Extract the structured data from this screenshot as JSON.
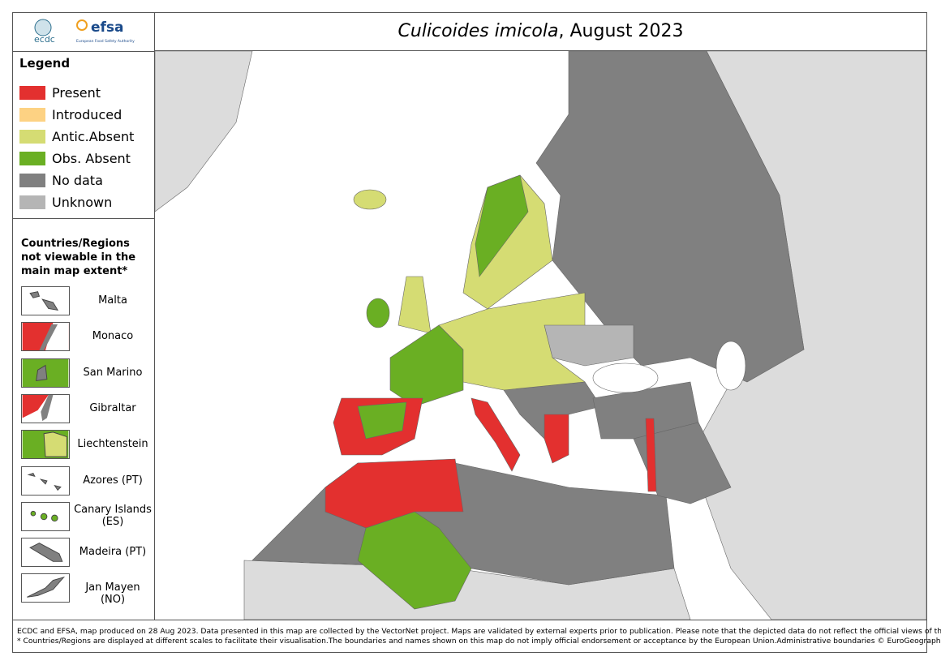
{
  "logos": {
    "ecdc": "ecdc",
    "efsa": "efsa",
    "efsa_sub": "European Food Safety Authority"
  },
  "title": {
    "species": "Culicoides imicola",
    "rest": ", August 2023"
  },
  "legend": {
    "title": "Legend",
    "items": [
      {
        "label": "Present",
        "color": "#e3302f"
      },
      {
        "label": "Introduced",
        "color": "#fdd283"
      },
      {
        "label": "Antic.Absent",
        "color": "#d5dc73"
      },
      {
        "label": "Obs. Absent",
        "color": "#6aaf23"
      },
      {
        "label": "No data",
        "color": "#808080"
      },
      {
        "label": "Unknown",
        "color": "#b5b5b5"
      }
    ]
  },
  "insets": {
    "title": "Countries/Regions not viewable in the main map extent*",
    "items": [
      {
        "label": "Malta"
      },
      {
        "label": "Monaco"
      },
      {
        "label": "San Marino"
      },
      {
        "label": "Gibraltar"
      },
      {
        "label": "Liechtenstein"
      },
      {
        "label": "Azores (PT)"
      },
      {
        "label": "Canary Islands (ES)"
      },
      {
        "label": "Madeira (PT)"
      },
      {
        "label": "Jan Mayen (NO)"
      }
    ]
  },
  "footer": [
    "ECDC and EFSA, map produced on 28 Aug 2023. Data presented in this map are collected by the VectorNet project. Maps are validated by external experts prior to publication. Please note that the depicted data do not reflect the official views of the countries.",
    "* Countries/Regions are displayed at different scales to facilitate their visualisation.The boundaries and names shown on this map do not imply official endorsement or acceptance by the European Union.Administrative boundaries © EuroGeographics, UNFAO."
  ]
}
